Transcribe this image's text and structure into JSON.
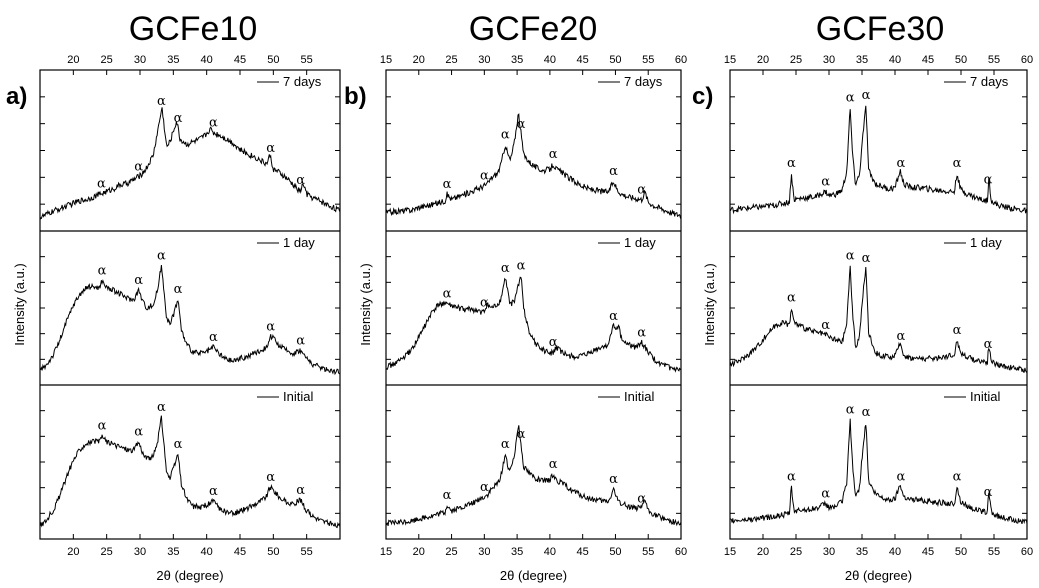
{
  "figure": {
    "xlabel": "2θ (degree)",
    "ylabel": "Intensity (a.u.)",
    "peak_symbol": "α",
    "line_color": "#000000"
  },
  "chart_data": [
    {
      "type": "line",
      "title": "GCFe10",
      "panel_label": "a)",
      "xlim": [
        15,
        60
      ],
      "xticks_bottom": [
        20,
        25,
        30,
        35,
        40,
        45,
        50,
        55
      ],
      "xticks_top": [
        20,
        25,
        30,
        35,
        40,
        45,
        50,
        55
      ],
      "xlabel": "2θ (degree)",
      "ylabel": "Intensity (a.u.)",
      "grid": false,
      "legend_position": "top-right",
      "subplots": [
        {
          "legend": "7 days",
          "x": [
            15,
            17,
            19,
            21,
            22,
            23,
            24,
            25,
            26,
            27,
            28,
            29,
            30,
            31,
            32,
            32.5,
            33,
            33.3,
            33.6,
            34,
            34.5,
            35,
            35.5,
            36,
            37,
            38,
            39,
            40,
            40.5,
            41,
            42,
            43,
            44,
            45,
            46,
            47,
            48,
            49,
            49.5,
            50,
            51,
            52,
            53,
            54,
            54.5,
            55,
            56,
            57,
            58,
            59,
            60
          ],
          "y": [
            4,
            9,
            13,
            17,
            18,
            20,
            22,
            24,
            26,
            29,
            30,
            33,
            36,
            42,
            52,
            66,
            80,
            88,
            75,
            58,
            62,
            70,
            78,
            64,
            60,
            62,
            64,
            68,
            72,
            69,
            67,
            64,
            61,
            56,
            53,
            51,
            48,
            45,
            52,
            41,
            38,
            34,
            29,
            24,
            30,
            22,
            19,
            17,
            14,
            12,
            9
          ],
          "peaks": [
            24.2,
            29.8,
            33.2,
            35.7,
            41.0,
            49.6,
            54.1
          ]
        },
        {
          "legend": "1 day",
          "x": [
            15,
            16,
            17,
            18,
            19,
            20,
            21,
            22,
            23,
            24,
            24.3,
            25,
            26,
            27,
            28,
            29,
            29.8,
            30.5,
            31,
            32,
            32.7,
            33.2,
            33.6,
            34,
            34.5,
            35,
            35.7,
            36.2,
            37,
            38,
            39,
            40,
            41,
            42,
            43,
            44,
            45,
            46,
            47,
            48,
            49,
            49.5,
            50,
            51,
            52,
            53,
            54,
            55,
            56,
            57,
            58,
            59,
            60
          ],
          "y": [
            5,
            10,
            18,
            30,
            45,
            58,
            67,
            72,
            73,
            72,
            78,
            72,
            70,
            67,
            64,
            62,
            70,
            60,
            56,
            58,
            72,
            90,
            70,
            48,
            42,
            50,
            63,
            38,
            26,
            20,
            19,
            20,
            24,
            18,
            14,
            13,
            15,
            16,
            19,
            21,
            24,
            33,
            31,
            25,
            21,
            19,
            22,
            15,
            10,
            8,
            6,
            5,
            4
          ],
          "peaks": [
            24.3,
            29.8,
            33.2,
            35.7,
            41.0,
            49.6,
            54.1
          ]
        },
        {
          "legend": "Initial",
          "x": [
            15,
            16,
            17,
            18,
            19,
            20,
            21,
            22,
            23,
            24,
            24.3,
            25,
            26,
            27,
            28,
            29,
            29.8,
            30.5,
            31,
            32,
            32.7,
            33.2,
            33.6,
            34,
            34.5,
            35,
            35.7,
            36.2,
            37,
            38,
            39,
            40,
            41,
            42,
            43,
            44,
            45,
            46,
            47,
            48,
            49,
            49.5,
            50,
            51,
            52,
            53,
            54,
            55,
            56,
            57,
            58,
            59,
            60
          ],
          "y": [
            4,
            9,
            17,
            29,
            44,
            57,
            66,
            71,
            72,
            72,
            77,
            72,
            70,
            68,
            66,
            65,
            72,
            62,
            58,
            60,
            74,
            92,
            70,
            47,
            42,
            50,
            62,
            38,
            26,
            20,
            19,
            21,
            24,
            18,
            15,
            14,
            16,
            18,
            21,
            24,
            28,
            36,
            33,
            27,
            23,
            21,
            26,
            16,
            12,
            9,
            7,
            5,
            4
          ],
          "peaks": [
            24.3,
            29.8,
            33.2,
            35.7,
            41.0,
            49.6,
            54.1
          ]
        }
      ]
    },
    {
      "type": "line",
      "title": "GCFe20",
      "panel_label": "b)",
      "xlim": [
        15,
        60
      ],
      "xticks_bottom": [
        15,
        20,
        25,
        30,
        35,
        40,
        45,
        50,
        55,
        60
      ],
      "xticks_top": [
        15,
        20,
        25,
        30,
        35,
        40,
        45,
        50,
        55,
        60
      ],
      "xlabel": "2θ (degree)",
      "ylabel": "Intensity (a.u.)",
      "grid": false,
      "legend_position": "top-right",
      "subplots": [
        {
          "legend": "7 days",
          "x": [
            15,
            17,
            19,
            20,
            22,
            24,
            24.3,
            25,
            26,
            28,
            29.8,
            30.5,
            31,
            32,
            32.5,
            33.2,
            33.6,
            34,
            34.6,
            35.2,
            35.6,
            36,
            37,
            38,
            39,
            40,
            40.5,
            41,
            42,
            43,
            44,
            45,
            46,
            47,
            48,
            49,
            49.7,
            50.3,
            51,
            52,
            53,
            54,
            54.5,
            55,
            56,
            57,
            58,
            59,
            60
          ],
          "y": [
            8,
            9,
            10,
            12,
            14,
            17,
            22,
            18,
            20,
            24,
            28,
            30,
            34,
            38,
            44,
            60,
            52,
            48,
            62,
            84,
            68,
            52,
            46,
            42,
            40,
            41,
            45,
            41,
            38,
            34,
            31,
            28,
            26,
            25,
            24,
            24,
            32,
            25,
            22,
            20,
            19,
            18,
            24,
            16,
            13,
            11,
            9,
            7,
            6
          ],
          "peaks": [
            24.3,
            30.0,
            33.2,
            35.6,
            40.5,
            49.7,
            54.0
          ]
        },
        {
          "legend": "1 day",
          "x": [
            15,
            16,
            17,
            18,
            19,
            20,
            21,
            22,
            23,
            24,
            25,
            26,
            27,
            28,
            29,
            30,
            30.5,
            31,
            32,
            32.5,
            33.2,
            33.6,
            34,
            34.6,
            35.1,
            35.6,
            36,
            37,
            38,
            39,
            40,
            40.5,
            41,
            42,
            43,
            44,
            45,
            46,
            47,
            48,
            49,
            49.6,
            50,
            50.5,
            51,
            52,
            53,
            54,
            55,
            56,
            57,
            58,
            59,
            60
          ],
          "y": [
            8,
            10,
            13,
            17,
            23,
            32,
            42,
            52,
            58,
            60,
            57,
            56,
            54,
            55,
            53,
            52,
            60,
            55,
            58,
            62,
            80,
            68,
            58,
            62,
            72,
            82,
            55,
            34,
            26,
            22,
            19,
            20,
            24,
            19,
            17,
            16,
            17,
            19,
            22,
            24,
            27,
            42,
            38,
            40,
            30,
            26,
            24,
            28,
            20,
            14,
            10,
            8,
            6,
            5
          ],
          "peaks": [
            24.3,
            30.0,
            33.2,
            35.6,
            40.5,
            49.7,
            54.0
          ]
        },
        {
          "legend": "Initial",
          "x": [
            15,
            17,
            19,
            20,
            22,
            24,
            24.3,
            25,
            26,
            28,
            29.8,
            30.5,
            31,
            32,
            32.5,
            33.2,
            33.6,
            34,
            34.6,
            35.2,
            35.6,
            36,
            37,
            38,
            39,
            40,
            40.5,
            41,
            42,
            43,
            44,
            45,
            46,
            47,
            48,
            49,
            49.7,
            50.3,
            51,
            52,
            53,
            54,
            54.5,
            55,
            56,
            57,
            58,
            59,
            60
          ],
          "y": [
            6,
            7,
            8,
            10,
            12,
            15,
            21,
            16,
            18,
            22,
            27,
            29,
            33,
            38,
            44,
            62,
            52,
            48,
            62,
            86,
            70,
            52,
            46,
            42,
            40,
            41,
            46,
            41,
            38,
            34,
            31,
            28,
            26,
            25,
            24,
            24,
            34,
            25,
            22,
            20,
            19,
            18,
            26,
            16,
            13,
            11,
            9,
            7,
            6
          ],
          "peaks": [
            24.3,
            30.0,
            33.2,
            35.6,
            40.5,
            49.7,
            54.0
          ]
        }
      ]
    },
    {
      "type": "line",
      "title": "GCFe30",
      "panel_label": "c)",
      "xlim": [
        15,
        60
      ],
      "xticks_bottom": [
        15,
        20,
        25,
        30,
        35,
        40,
        45,
        50,
        55,
        60
      ],
      "xticks_top": [
        15,
        20,
        25,
        30,
        35,
        40,
        45,
        50,
        55,
        60
      ],
      "xlabel": "2θ (degree)",
      "ylabel": "Intensity (a.u.)",
      "grid": false,
      "legend_position": "top-right",
      "subplots": [
        {
          "legend": "7 days",
          "x": [
            15,
            17,
            19,
            21,
            23,
            24,
            24.3,
            24.7,
            26,
            28,
            29.5,
            30,
            31,
            32,
            32.7,
            33.2,
            33.6,
            34,
            34.6,
            35.2,
            35.6,
            36,
            37,
            38,
            39,
            40,
            40.8,
            41.3,
            42,
            43,
            44,
            45,
            46,
            47,
            48,
            49,
            49.4,
            49.9,
            51,
            52,
            53,
            54,
            54.2,
            54.6,
            55,
            56,
            57,
            58,
            59,
            60
          ],
          "y": [
            10,
            11,
            12,
            13,
            15,
            16,
            38,
            18,
            19,
            20,
            24,
            21,
            22,
            25,
            40,
            88,
            50,
            30,
            36,
            70,
            90,
            40,
            30,
            28,
            26,
            27,
            40,
            30,
            28,
            27,
            27,
            26,
            25,
            25,
            24,
            24,
            38,
            26,
            22,
            20,
            18,
            17,
            34,
            18,
            15,
            13,
            12,
            11,
            10,
            9
          ],
          "peaks": [
            24.3,
            29.5,
            33.2,
            35.6,
            40.9,
            49.4,
            54.1
          ]
        },
        {
          "legend": "1 day",
          "x": [
            15,
            16,
            17,
            18,
            19,
            20,
            21,
            22,
            23,
            24,
            24.3,
            24.7,
            26,
            28,
            29.5,
            30,
            31,
            32,
            32.7,
            33.2,
            33.6,
            34,
            34.6,
            35.2,
            35.6,
            36,
            37,
            38,
            39,
            40,
            40.8,
            41.3,
            42,
            43,
            44,
            45,
            46,
            47,
            48,
            49,
            49.4,
            49.9,
            51,
            52,
            53,
            54,
            54.2,
            54.6,
            55,
            56,
            57,
            58,
            59,
            60
          ],
          "y": [
            10,
            12,
            15,
            19,
            24,
            30,
            37,
            42,
            44,
            42,
            56,
            44,
            40,
            36,
            34,
            32,
            30,
            28,
            44,
            90,
            50,
            24,
            32,
            70,
            88,
            36,
            20,
            17,
            16,
            17,
            27,
            18,
            16,
            15,
            15,
            15,
            15,
            16,
            17,
            18,
            30,
            20,
            16,
            14,
            13,
            12,
            25,
            13,
            11,
            9,
            8,
            7,
            6,
            5
          ],
          "peaks": [
            24.3,
            29.5,
            33.2,
            35.6,
            40.9,
            49.4,
            54.1
          ]
        },
        {
          "legend": "Initial",
          "x": [
            15,
            17,
            19,
            21,
            23,
            24,
            24.3,
            24.7,
            26,
            28,
            29.5,
            30,
            31,
            32,
            32.7,
            33.2,
            33.6,
            34,
            34.6,
            35.2,
            35.6,
            36,
            37,
            38,
            39,
            40,
            40.8,
            41.3,
            42,
            43,
            44,
            45,
            46,
            47,
            48,
            49,
            49.4,
            49.9,
            51,
            52,
            53,
            54,
            54.2,
            54.6,
            55,
            56,
            57,
            58,
            59,
            60
          ],
          "y": [
            8,
            9,
            10,
            11,
            13,
            14,
            36,
            16,
            17,
            18,
            22,
            19,
            20,
            24,
            40,
            90,
            50,
            28,
            34,
            70,
            88,
            40,
            30,
            27,
            25,
            26,
            38,
            28,
            26,
            25,
            25,
            24,
            23,
            23,
            22,
            22,
            36,
            24,
            20,
            18,
            16,
            15,
            32,
            16,
            13,
            11,
            10,
            9,
            8,
            7
          ],
          "peaks": [
            24.3,
            29.5,
            33.2,
            35.6,
            40.9,
            49.4,
            54.1
          ]
        }
      ]
    }
  ]
}
